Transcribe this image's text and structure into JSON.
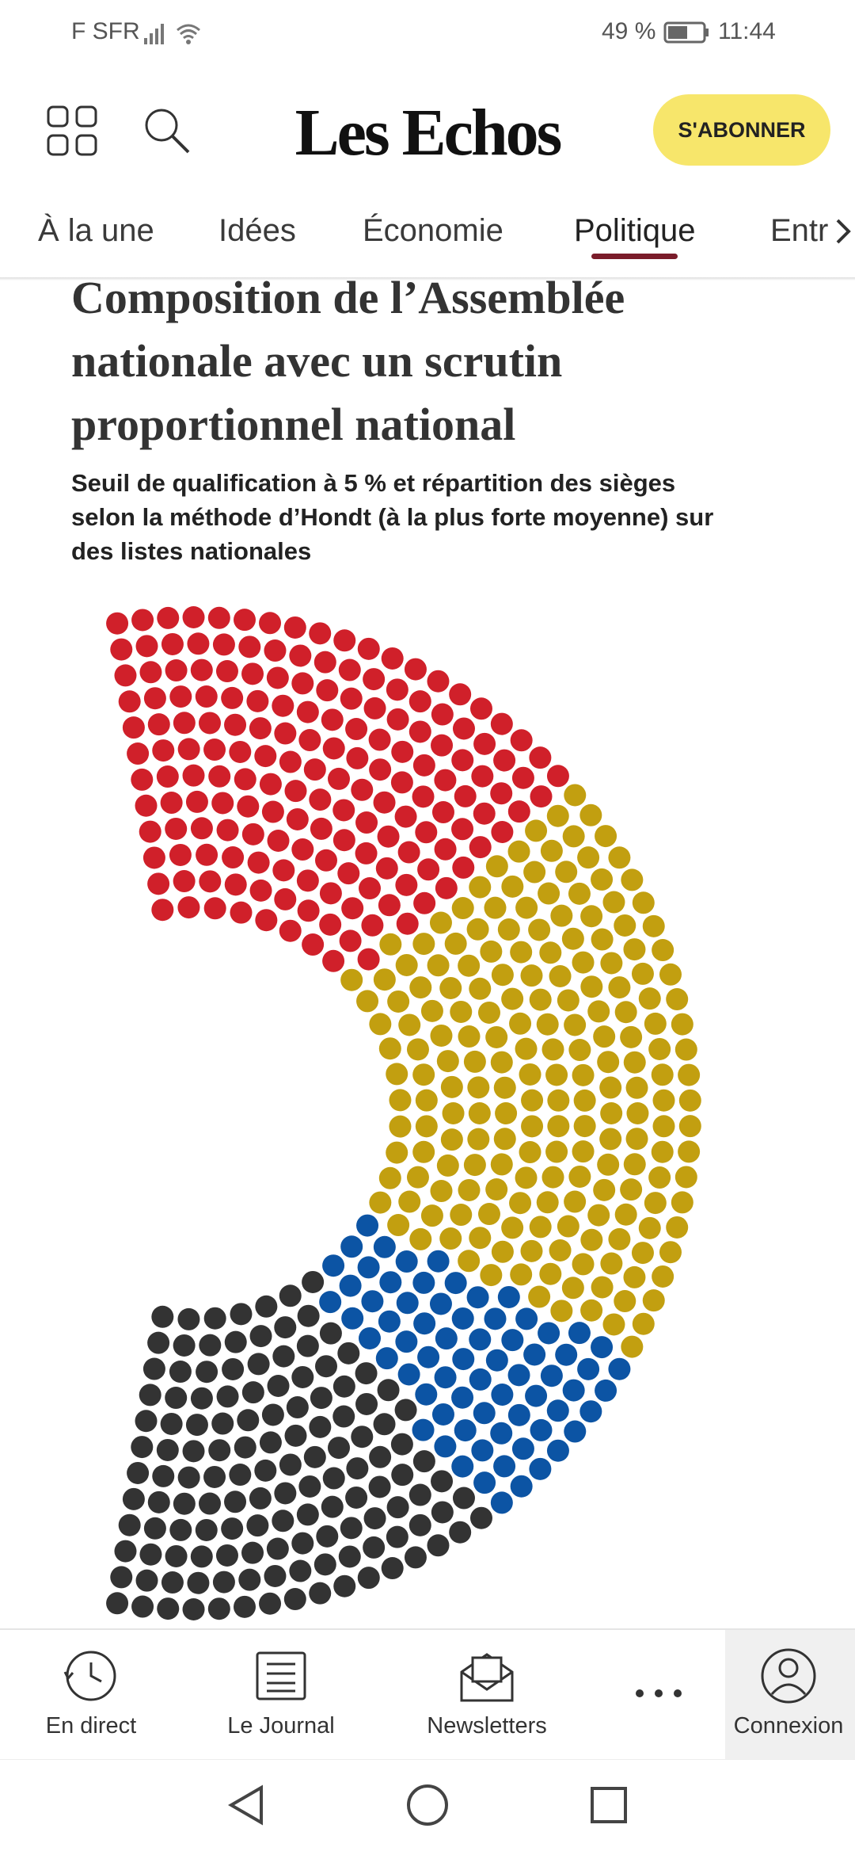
{
  "status_bar": {
    "carrier": "F SFR",
    "battery": "49 %",
    "time": "11:44"
  },
  "header": {
    "logo": "Les Echos",
    "subscribe": "S'ABONNER"
  },
  "tabs": [
    "À la une",
    "Idées",
    "Économie",
    "Politique",
    "Entr"
  ],
  "active_tab": 3,
  "article": {
    "title_lines": [
      "Composition de l’Assemblée",
      "nationale avec un scrutin",
      "proportionnel national"
    ],
    "subtitle_lines": [
      "Seuil de qualification à 5 % et répartition des sièges",
      "selon la méthode d’Hondt (à la plus forte moyenne) sur",
      "des listes nationales"
    ]
  },
  "chart_data": {
    "type": "hemicycle",
    "series": [
      {
        "color": "#d0202a",
        "value": 172
      },
      {
        "color": "#c29f10",
        "value": 201
      },
      {
        "color": "#0c54a4",
        "value": 70
      },
      {
        "color": "#333333",
        "value": 134
      }
    ]
  },
  "bottom_nav": [
    "En direct",
    "Le Journal",
    "Newsletters",
    "Connexion"
  ]
}
